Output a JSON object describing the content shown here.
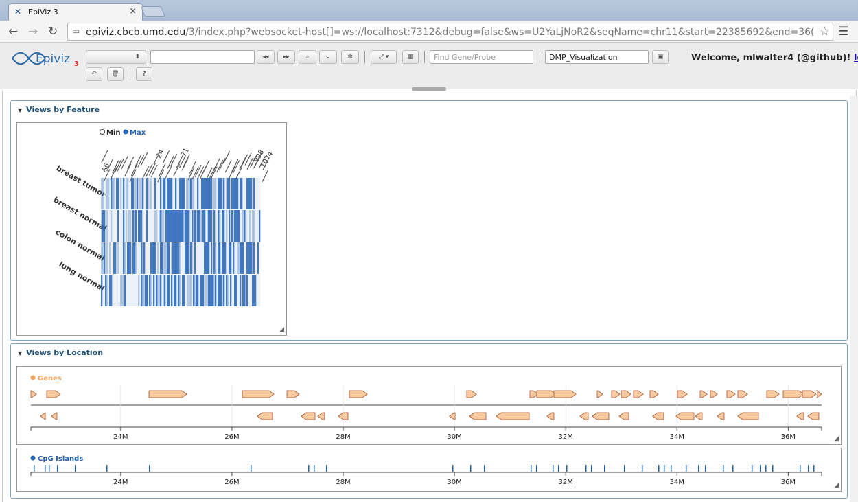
{
  "browser": {
    "tab_title": "EpiViz 3",
    "tab_close": "×",
    "url_host": "epiviz.cbcb.umd.edu",
    "url_rest": "/3/index.php?websocket-host[]=ws://localhost:7312&debug=false&ws=U2YaLjNoR2&seqName=chr11&start=22385692&end=36("
  },
  "toolbar": {
    "logo_text": "Epiviz",
    "logo_sub": "3",
    "chr_select_value": "",
    "location_input_value": "",
    "find_placeholder": "Find Gene/Probe",
    "workspace_value": "DMP_Visualization",
    "welcome_text": "Welcome, mlwalter4 (@github)!",
    "logout_label": "logout",
    "help_label": "?"
  },
  "feature_panel": {
    "title": "Views by Feature",
    "legend_min": "Min",
    "legend_max": "Max",
    "rows": [
      "breast tumor",
      "breast normal",
      "colon normal",
      "lung normal"
    ],
    "col_labels": [
      "A6",
      "24",
      "71",
      "998",
      "1074"
    ]
  },
  "location_panel": {
    "title": "Views by Location",
    "genes_title": "Genes",
    "cpg_title": "CpG Islands",
    "axis_ticks": [
      "24M",
      "26M",
      "28M",
      "30M",
      "32M",
      "34M",
      "36M"
    ],
    "colors": {
      "genes": "#f4a460",
      "cpg": "#1f5fa8",
      "gene_fill": "#f9c9a0",
      "heat_max": "#2463b5"
    }
  }
}
